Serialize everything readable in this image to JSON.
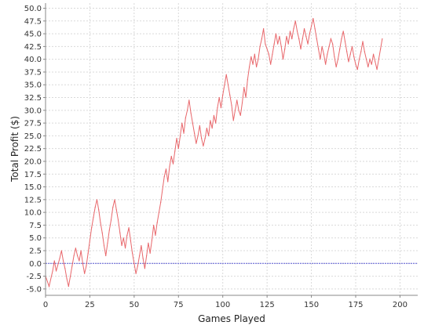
{
  "chart_data": {
    "type": "line",
    "xlabel": "Games Played",
    "ylabel": "Total Profit ($)",
    "xlim": [
      0,
      210
    ],
    "ylim": [
      -6.25,
      51
    ],
    "x_ticks": [
      0,
      25,
      50,
      75,
      100,
      125,
      150,
      175,
      200
    ],
    "y_ticks": [
      -5,
      -2.5,
      0,
      2.5,
      5,
      7.5,
      10,
      12.5,
      15,
      17.5,
      20,
      22.5,
      25,
      27.5,
      30,
      32.5,
      35,
      37.5,
      40,
      42.5,
      45,
      47.5,
      50
    ],
    "grid": true,
    "baseline": 0,
    "colors": {
      "line": "#e8676b",
      "baseline": "#5b5bd6",
      "grid": "#d9d9d9",
      "axis": "#888888"
    },
    "series": [
      {
        "points": [
          [
            0,
            -2.5
          ],
          [
            2,
            -4.5
          ],
          [
            4,
            -1.5
          ],
          [
            5,
            0.5
          ],
          [
            6,
            -1.5
          ],
          [
            8,
            1
          ],
          [
            9,
            2.5
          ],
          [
            10,
            0.5
          ],
          [
            11,
            -1
          ],
          [
            12,
            -3
          ],
          [
            13,
            -4.5
          ],
          [
            14,
            -2.5
          ],
          [
            15,
            -0.5
          ],
          [
            16,
            1.5
          ],
          [
            17,
            3
          ],
          [
            18,
            1.5
          ],
          [
            19,
            0.5
          ],
          [
            20,
            2.5
          ],
          [
            21,
            0
          ],
          [
            22,
            -2
          ],
          [
            23,
            -0.5
          ],
          [
            24,
            2
          ],
          [
            25,
            4.5
          ],
          [
            26,
            7
          ],
          [
            27,
            9
          ],
          [
            28,
            11
          ],
          [
            29,
            12.5
          ],
          [
            30,
            10.5
          ],
          [
            31,
            8
          ],
          [
            32,
            6
          ],
          [
            33,
            3.5
          ],
          [
            34,
            1.5
          ],
          [
            35,
            4
          ],
          [
            36,
            6.5
          ],
          [
            37,
            8.5
          ],
          [
            38,
            11
          ],
          [
            39,
            12.5
          ],
          [
            40,
            10.5
          ],
          [
            41,
            8.5
          ],
          [
            42,
            6
          ],
          [
            43,
            3.5
          ],
          [
            44,
            5
          ],
          [
            45,
            3
          ],
          [
            46,
            5.5
          ],
          [
            47,
            7
          ],
          [
            48,
            4.5
          ],
          [
            49,
            2
          ],
          [
            50,
            0
          ],
          [
            51,
            -2
          ],
          [
            52,
            -0.5
          ],
          [
            53,
            1.5
          ],
          [
            54,
            3.5
          ],
          [
            55,
            1
          ],
          [
            56,
            -1
          ],
          [
            57,
            1.5
          ],
          [
            58,
            4
          ],
          [
            59,
            2
          ],
          [
            60,
            4.5
          ],
          [
            61,
            7.5
          ],
          [
            62,
            5.5
          ],
          [
            63,
            8
          ],
          [
            64,
            10
          ],
          [
            65,
            12
          ],
          [
            66,
            14.5
          ],
          [
            67,
            17
          ],
          [
            68,
            18.5
          ],
          [
            69,
            16
          ],
          [
            70,
            19
          ],
          [
            71,
            21
          ],
          [
            72,
            19.5
          ],
          [
            73,
            22
          ],
          [
            74,
            24.5
          ],
          [
            75,
            22.5
          ],
          [
            76,
            25
          ],
          [
            77,
            27.5
          ],
          [
            78,
            25.5
          ],
          [
            79,
            28.5
          ],
          [
            80,
            30
          ],
          [
            81,
            32
          ],
          [
            82,
            29.5
          ],
          [
            83,
            27.5
          ],
          [
            84,
            25.5
          ],
          [
            85,
            23.5
          ],
          [
            86,
            25
          ],
          [
            87,
            27
          ],
          [
            88,
            24.5
          ],
          [
            89,
            23
          ],
          [
            90,
            24.5
          ],
          [
            91,
            26.5
          ],
          [
            92,
            25
          ],
          [
            93,
            28
          ],
          [
            94,
            26.5
          ],
          [
            95,
            29
          ],
          [
            96,
            27.5
          ],
          [
            97,
            30.5
          ],
          [
            98,
            32.5
          ],
          [
            99,
            30.5
          ],
          [
            100,
            33
          ],
          [
            101,
            35
          ],
          [
            102,
            37
          ],
          [
            103,
            35
          ],
          [
            104,
            33
          ],
          [
            105,
            31
          ],
          [
            106,
            28
          ],
          [
            107,
            30
          ],
          [
            108,
            32
          ],
          [
            109,
            30
          ],
          [
            110,
            29
          ],
          [
            111,
            31.5
          ],
          [
            112,
            34.5
          ],
          [
            113,
            32.5
          ],
          [
            114,
            36
          ],
          [
            115,
            38.5
          ],
          [
            116,
            40.5
          ],
          [
            117,
            39
          ],
          [
            118,
            41
          ],
          [
            119,
            38.5
          ],
          [
            120,
            40
          ],
          [
            121,
            42.5
          ],
          [
            122,
            44
          ],
          [
            123,
            46
          ],
          [
            124,
            43
          ],
          [
            125,
            42
          ],
          [
            126,
            41
          ],
          [
            127,
            39
          ],
          [
            128,
            41
          ],
          [
            129,
            43
          ],
          [
            130,
            45
          ],
          [
            131,
            43
          ],
          [
            132,
            44.5
          ],
          [
            133,
            42.5
          ],
          [
            134,
            40
          ],
          [
            135,
            42
          ],
          [
            136,
            44.5
          ],
          [
            137,
            43
          ],
          [
            138,
            45.5
          ],
          [
            139,
            44
          ],
          [
            140,
            46
          ],
          [
            141,
            47.5
          ],
          [
            142,
            45.5
          ],
          [
            143,
            44
          ],
          [
            144,
            42
          ],
          [
            145,
            44
          ],
          [
            146,
            46
          ],
          [
            147,
            44.5
          ],
          [
            148,
            43
          ],
          [
            149,
            45
          ],
          [
            150,
            46.5
          ],
          [
            151,
            48
          ],
          [
            152,
            46
          ],
          [
            153,
            44
          ],
          [
            154,
            42
          ],
          [
            155,
            40
          ],
          [
            156,
            42.5
          ],
          [
            157,
            41
          ],
          [
            158,
            39
          ],
          [
            159,
            41
          ],
          [
            160,
            42.5
          ],
          [
            161,
            44
          ],
          [
            162,
            43
          ],
          [
            163,
            40.5
          ],
          [
            164,
            38.5
          ],
          [
            165,
            40
          ],
          [
            166,
            42
          ],
          [
            167,
            44
          ],
          [
            168,
            45.5
          ],
          [
            169,
            43.5
          ],
          [
            170,
            41.5
          ],
          [
            171,
            39.5
          ],
          [
            172,
            41
          ],
          [
            173,
            42.5
          ],
          [
            174,
            40.5
          ],
          [
            175,
            39
          ],
          [
            176,
            38
          ],
          [
            177,
            40
          ],
          [
            178,
            41.5
          ],
          [
            179,
            43.5
          ],
          [
            180,
            41.5
          ],
          [
            181,
            40
          ],
          [
            182,
            38.5
          ],
          [
            183,
            40
          ],
          [
            184,
            39
          ],
          [
            185,
            41
          ],
          [
            186,
            39.5
          ],
          [
            187,
            38
          ],
          [
            188,
            40
          ],
          [
            189,
            42
          ],
          [
            190,
            44
          ]
        ]
      }
    ]
  }
}
